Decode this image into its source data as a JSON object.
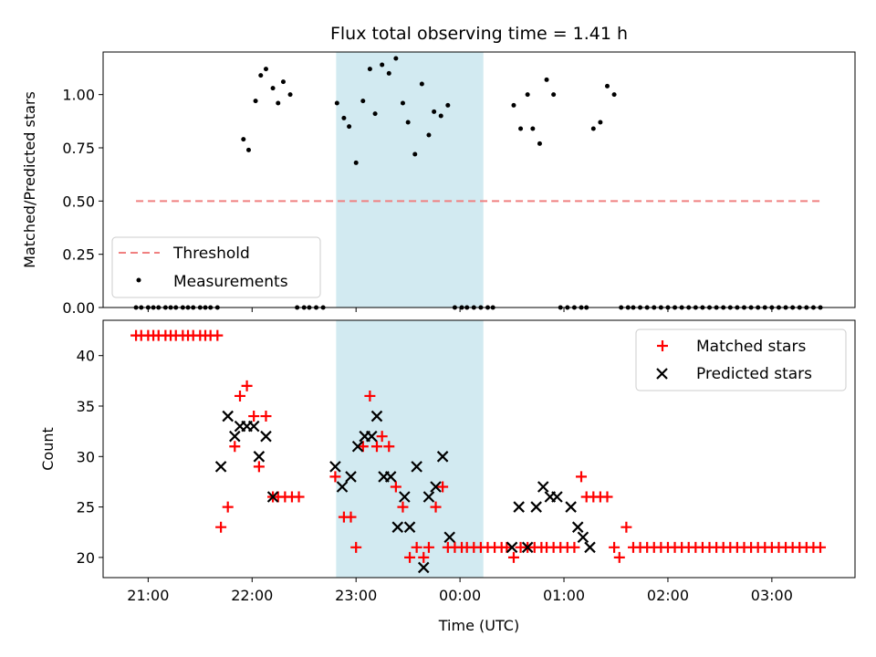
{
  "title": "Flux total observing time = 1.41 h",
  "colors": {
    "threshold": "#f08080",
    "measurement": "#000000",
    "matched": "#ff0000",
    "predicted": "#000000",
    "shade": "#add8e6"
  },
  "x_axis": {
    "label": "Time (UTC)",
    "ticks": [
      {
        "value": 1260,
        "label": "21:00"
      },
      {
        "value": 1320,
        "label": "22:00"
      },
      {
        "value": 1380,
        "label": "23:00"
      },
      {
        "value": 1440,
        "label": "00:00"
      },
      {
        "value": 1500,
        "label": "01:00"
      },
      {
        "value": 1560,
        "label": "02:00"
      },
      {
        "value": 1620,
        "label": "03:00"
      }
    ],
    "range": [
      1234,
      1668
    ]
  },
  "chart_data": [
    {
      "type": "scatter",
      "ylabel": "Matched/Predicted stars",
      "ylim": [
        0,
        1.2
      ],
      "yticks": [
        "0.00",
        "0.25",
        "0.50",
        "0.75",
        "1.00"
      ],
      "shaded_interval": [
        1368.5,
        1453.5
      ],
      "threshold": {
        "name": "Threshold",
        "y": 0.5,
        "x": [
          1253,
          1648
        ]
      },
      "legend": {
        "position": "lower-left",
        "entries": [
          "Threshold",
          "Measurements"
        ]
      },
      "series": [
        {
          "name": "Measurements",
          "points": [
            [
              1253,
              0
            ],
            [
              1256,
              0
            ],
            [
              1260,
              0
            ],
            [
              1263,
              0
            ],
            [
              1266,
              0
            ],
            [
              1270,
              0
            ],
            [
              1273,
              0
            ],
            [
              1276,
              0
            ],
            [
              1280,
              0
            ],
            [
              1283,
              0
            ],
            [
              1286,
              0
            ],
            [
              1290,
              0
            ],
            [
              1293,
              0
            ],
            [
              1296,
              0
            ],
            [
              1300,
              0
            ],
            [
              1315,
              0.79
            ],
            [
              1318,
              0.74
            ],
            [
              1322,
              0.97
            ],
            [
              1325,
              1.09
            ],
            [
              1328,
              1.12
            ],
            [
              1332,
              1.03
            ],
            [
              1335,
              0.96
            ],
            [
              1338,
              1.06
            ],
            [
              1342,
              1.0
            ],
            [
              1346,
              0
            ],
            [
              1350,
              0
            ],
            [
              1353,
              0
            ],
            [
              1357,
              0
            ],
            [
              1361,
              0
            ],
            [
              1369,
              0.96
            ],
            [
              1373,
              0.89
            ],
            [
              1376,
              0.85
            ],
            [
              1380,
              0.68
            ],
            [
              1384,
              0.97
            ],
            [
              1388,
              1.12
            ],
            [
              1391,
              0.91
            ],
            [
              1395,
              1.14
            ],
            [
              1399,
              1.1
            ],
            [
              1403,
              1.17
            ],
            [
              1407,
              0.96
            ],
            [
              1410,
              0.87
            ],
            [
              1414,
              0.72
            ],
            [
              1418,
              1.05
            ],
            [
              1422,
              0.81
            ],
            [
              1425,
              0.92
            ],
            [
              1429,
              0.9
            ],
            [
              1433,
              0.95
            ],
            [
              1437,
              0
            ],
            [
              1441,
              0
            ],
            [
              1444,
              0
            ],
            [
              1448,
              0
            ],
            [
              1452,
              0
            ],
            [
              1456,
              0
            ],
            [
              1459,
              0
            ],
            [
              1471,
              0.95
            ],
            [
              1475,
              0.84
            ],
            [
              1479,
              1.0
            ],
            [
              1482,
              0.84
            ],
            [
              1486,
              0.77
            ],
            [
              1490,
              1.07
            ],
            [
              1494,
              1.0
            ],
            [
              1498,
              0
            ],
            [
              1502,
              0
            ],
            [
              1506,
              0
            ],
            [
              1510,
              0
            ],
            [
              1513,
              0
            ],
            [
              1517,
              0.84
            ],
            [
              1521,
              0.87
            ],
            [
              1525,
              1.04
            ],
            [
              1529,
              1.0
            ],
            [
              1533,
              0
            ],
            [
              1537,
              0
            ],
            [
              1540,
              0
            ],
            [
              1544,
              0
            ],
            [
              1548,
              0
            ],
            [
              1552,
              0
            ],
            [
              1556,
              0
            ],
            [
              1560,
              0
            ],
            [
              1564,
              0
            ],
            [
              1568,
              0
            ],
            [
              1572,
              0
            ],
            [
              1576,
              0
            ],
            [
              1580,
              0
            ],
            [
              1584,
              0
            ],
            [
              1588,
              0
            ],
            [
              1592,
              0
            ],
            [
              1596,
              0
            ],
            [
              1600,
              0
            ],
            [
              1604,
              0
            ],
            [
              1608,
              0
            ],
            [
              1612,
              0
            ],
            [
              1616,
              0
            ],
            [
              1620,
              0
            ],
            [
              1624,
              0
            ],
            [
              1628,
              0
            ],
            [
              1632,
              0
            ],
            [
              1636,
              0
            ],
            [
              1640,
              0
            ],
            [
              1644,
              0
            ],
            [
              1648,
              0
            ]
          ]
        }
      ]
    },
    {
      "type": "scatter",
      "ylabel": "Count",
      "ylim": [
        18,
        43.5
      ],
      "yticks": [
        "20",
        "25",
        "30",
        "35",
        "40"
      ],
      "shaded_interval": [
        1368.5,
        1453.5
      ],
      "legend": {
        "position": "upper-right",
        "entries": [
          "Matched stars",
          "Predicted stars"
        ]
      },
      "series": [
        {
          "name": "Matched stars",
          "marker": "plus",
          "points": [
            [
              1253,
              42
            ],
            [
              1256,
              42
            ],
            [
              1260,
              42
            ],
            [
              1263,
              42
            ],
            [
              1266,
              42
            ],
            [
              1270,
              42
            ],
            [
              1273,
              42
            ],
            [
              1276,
              42
            ],
            [
              1280,
              42
            ],
            [
              1283,
              42
            ],
            [
              1286,
              42
            ],
            [
              1290,
              42
            ],
            [
              1293,
              42
            ],
            [
              1296,
              42
            ],
            [
              1300,
              42
            ],
            [
              1302,
              23
            ],
            [
              1306,
              25
            ],
            [
              1310,
              31
            ],
            [
              1313,
              36
            ],
            [
              1317,
              37
            ],
            [
              1321,
              34
            ],
            [
              1324,
              29
            ],
            [
              1328,
              34
            ],
            [
              1332,
              26
            ],
            [
              1335,
              26
            ],
            [
              1339,
              26
            ],
            [
              1343,
              26
            ],
            [
              1347,
              26
            ],
            [
              1368,
              28
            ],
            [
              1373,
              24
            ],
            [
              1377,
              24
            ],
            [
              1380,
              21
            ],
            [
              1384,
              31
            ],
            [
              1388,
              36
            ],
            [
              1392,
              31
            ],
            [
              1395,
              32
            ],
            [
              1399,
              31
            ],
            [
              1403,
              27
            ],
            [
              1407,
              25
            ],
            [
              1411,
              20
            ],
            [
              1415,
              21
            ],
            [
              1419,
              20
            ],
            [
              1422,
              21
            ],
            [
              1426,
              25
            ],
            [
              1430,
              27
            ],
            [
              1433,
              21
            ],
            [
              1437,
              21
            ],
            [
              1441,
              21
            ],
            [
              1444,
              21
            ],
            [
              1448,
              21
            ],
            [
              1452,
              21
            ],
            [
              1456,
              21
            ],
            [
              1460,
              21
            ],
            [
              1464,
              21
            ],
            [
              1467,
              21
            ],
            [
              1471,
              20
            ],
            [
              1475,
              21
            ],
            [
              1479,
              21
            ],
            [
              1483,
              21
            ],
            [
              1487,
              21
            ],
            [
              1490,
              21
            ],
            [
              1494,
              21
            ],
            [
              1498,
              21
            ],
            [
              1502,
              21
            ],
            [
              1506,
              21
            ],
            [
              1510,
              28
            ],
            [
              1513,
              26
            ],
            [
              1517,
              26
            ],
            [
              1521,
              26
            ],
            [
              1525,
              26
            ],
            [
              1529,
              21
            ],
            [
              1532,
              20
            ],
            [
              1536,
              23
            ],
            [
              1540,
              21
            ],
            [
              1544,
              21
            ],
            [
              1548,
              21
            ],
            [
              1552,
              21
            ],
            [
              1556,
              21
            ],
            [
              1560,
              21
            ],
            [
              1564,
              21
            ],
            [
              1568,
              21
            ],
            [
              1572,
              21
            ],
            [
              1576,
              21
            ],
            [
              1580,
              21
            ],
            [
              1584,
              21
            ],
            [
              1588,
              21
            ],
            [
              1592,
              21
            ],
            [
              1596,
              21
            ],
            [
              1600,
              21
            ],
            [
              1604,
              21
            ],
            [
              1608,
              21
            ],
            [
              1612,
              21
            ],
            [
              1616,
              21
            ],
            [
              1620,
              21
            ],
            [
              1624,
              21
            ],
            [
              1628,
              21
            ],
            [
              1632,
              21
            ],
            [
              1636,
              21
            ],
            [
              1640,
              21
            ],
            [
              1644,
              21
            ],
            [
              1648,
              21
            ]
          ]
        },
        {
          "name": "Predicted stars",
          "marker": "cross",
          "points": [
            [
              1302,
              29
            ],
            [
              1306,
              34
            ],
            [
              1310,
              32
            ],
            [
              1313,
              33
            ],
            [
              1317,
              33
            ],
            [
              1321,
              33
            ],
            [
              1324,
              30
            ],
            [
              1328,
              32
            ],
            [
              1332,
              26
            ],
            [
              1368,
              29
            ],
            [
              1372,
              27
            ],
            [
              1377,
              28
            ],
            [
              1381,
              31
            ],
            [
              1385,
              32
            ],
            [
              1389,
              32
            ],
            [
              1392,
              34
            ],
            [
              1396,
              28
            ],
            [
              1400,
              28
            ],
            [
              1404,
              23
            ],
            [
              1408,
              26
            ],
            [
              1411,
              23
            ],
            [
              1415,
              29
            ],
            [
              1419,
              19
            ],
            [
              1422,
              26
            ],
            [
              1426,
              27
            ],
            [
              1430,
              30
            ],
            [
              1434,
              22
            ],
            [
              1470,
              21
            ],
            [
              1474,
              25
            ],
            [
              1479,
              21
            ],
            [
              1484,
              25
            ],
            [
              1488,
              27
            ],
            [
              1492,
              26
            ],
            [
              1496,
              26
            ],
            [
              1504,
              25
            ],
            [
              1508,
              23
            ],
            [
              1511,
              22
            ],
            [
              1515,
              21
            ]
          ]
        }
      ]
    }
  ]
}
